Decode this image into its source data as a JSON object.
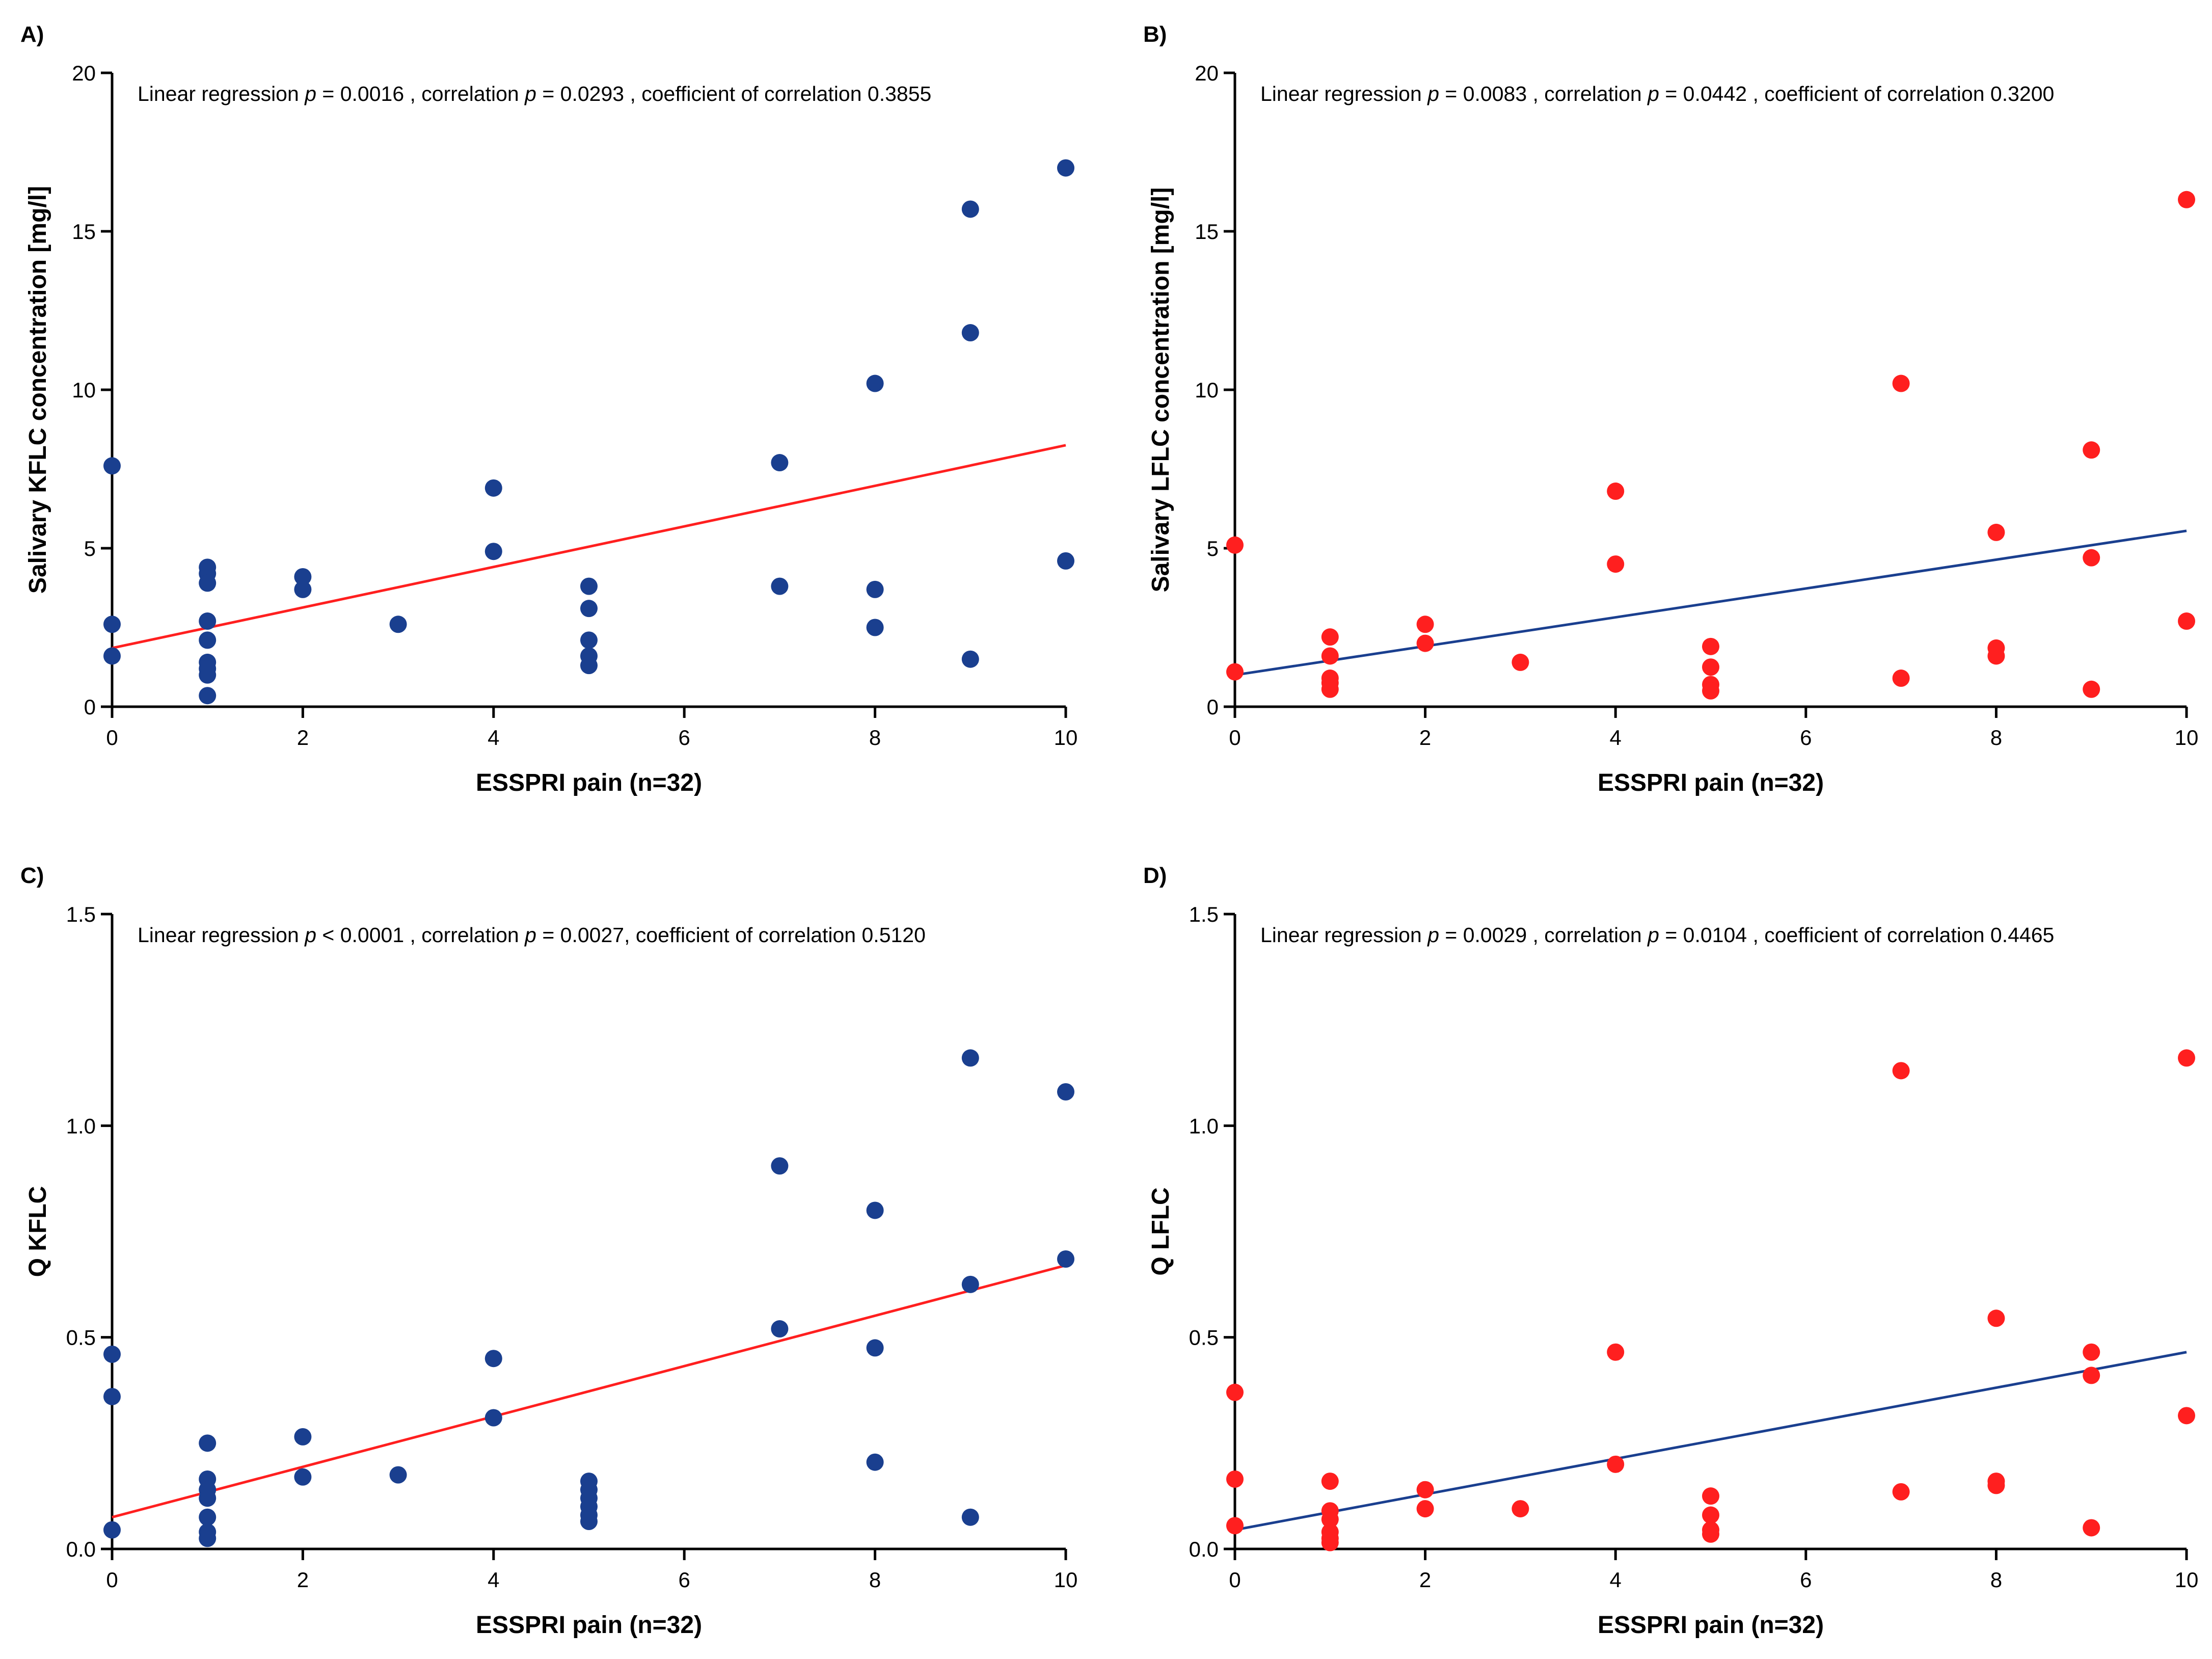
{
  "figure": {
    "colors": {
      "blue": "#1a3f8f",
      "red": "#ff1f1f",
      "axis": "#000000"
    },
    "panels": [
      {
        "label": "A)",
        "ylabel": "Salivary KFLC concentration [mg/l]",
        "xlabel": "ESSPRI pain (n=32)",
        "stats": [
          {
            "t": "Linear regression ",
            "i": false
          },
          {
            "t": "p",
            "i": true
          },
          {
            "t": " = 0.0016 , correlation ",
            "i": false
          },
          {
            "t": "p",
            "i": true
          },
          {
            "t": " = 0.0293 , coefficient of correlation 0.3855",
            "i": false
          }
        ]
      },
      {
        "label": "B)",
        "ylabel": "Salivary LFLC concentration [mg/l]",
        "xlabel": "ESSPRI pain (n=32)",
        "stats": [
          {
            "t": "Linear regression ",
            "i": false
          },
          {
            "t": "p",
            "i": true
          },
          {
            "t": " = 0.0083 , correlation ",
            "i": false
          },
          {
            "t": "p",
            "i": true
          },
          {
            "t": " = 0.0442 , coefficient of correlation 0.3200",
            "i": false
          }
        ]
      },
      {
        "label": "C)",
        "ylabel": "Q KFLC",
        "xlabel": "ESSPRI pain (n=32)",
        "stats": [
          {
            "t": "Linear regression ",
            "i": false
          },
          {
            "t": "p",
            "i": true
          },
          {
            "t": " < 0.0001 , correlation ",
            "i": false
          },
          {
            "t": "p",
            "i": true
          },
          {
            "t": " = 0.0027, coefficient of correlation 0.5120",
            "i": false
          }
        ]
      },
      {
        "label": "D)",
        "ylabel": "Q LFLC",
        "xlabel": "ESSPRI pain (n=32)",
        "stats": [
          {
            "t": "Linear regression ",
            "i": false
          },
          {
            "t": "p",
            "i": true
          },
          {
            "t": " = 0.0029 , correlation ",
            "i": false
          },
          {
            "t": "p",
            "i": true
          },
          {
            "t": " = 0.0104 , coefficient of correlation 0.4465",
            "i": false
          }
        ]
      }
    ]
  },
  "chart_data": [
    {
      "type": "scatter",
      "panel": "A)",
      "xlabel": "ESSPRI pain (n=32)",
      "ylabel": "Salivary KFLC concentration [mg/l]",
      "xlim": [
        0,
        10
      ],
      "ylim": [
        0,
        20
      ],
      "xticks": [
        "0",
        "2",
        "4",
        "6",
        "8",
        "10"
      ],
      "yticks": [
        "0",
        "5",
        "10",
        "15",
        "20"
      ],
      "xtick_values": [
        0,
        2,
        4,
        6,
        8,
        10
      ],
      "ytick_values": [
        0,
        5,
        10,
        15,
        20
      ],
      "point_color": "#1a3f8f",
      "points": [
        [
          0,
          7.6
        ],
        [
          0,
          2.6
        ],
        [
          0,
          1.6
        ],
        [
          1,
          4.4
        ],
        [
          1,
          4.2
        ],
        [
          1,
          3.9
        ],
        [
          1,
          2.7
        ],
        [
          1,
          2.1
        ],
        [
          1,
          1.4
        ],
        [
          1,
          1.2
        ],
        [
          1,
          1.0
        ],
        [
          1,
          0.35
        ],
        [
          2,
          4.1
        ],
        [
          2,
          3.7
        ],
        [
          3,
          2.6
        ],
        [
          4,
          6.9
        ],
        [
          4,
          4.9
        ],
        [
          5,
          3.8
        ],
        [
          5,
          3.1
        ],
        [
          5,
          2.1
        ],
        [
          5,
          1.6
        ],
        [
          5,
          1.3
        ],
        [
          7,
          7.7
        ],
        [
          7,
          3.8
        ],
        [
          8,
          10.2
        ],
        [
          8,
          3.7
        ],
        [
          8,
          2.5
        ],
        [
          9,
          15.7
        ],
        [
          9,
          11.8
        ],
        [
          9,
          1.5
        ],
        [
          10,
          17.0
        ],
        [
          10,
          4.6
        ]
      ],
      "regression": {
        "x": [
          0,
          10
        ],
        "y": [
          1.85,
          8.25
        ],
        "color": "#ff1f1f"
      }
    },
    {
      "type": "scatter",
      "panel": "B)",
      "xlabel": "ESSPRI pain (n=32)",
      "ylabel": "Salivary LFLC concentration [mg/l]",
      "xlim": [
        0,
        10
      ],
      "ylim": [
        0,
        20
      ],
      "xticks": [
        "0",
        "2",
        "4",
        "6",
        "8",
        "10"
      ],
      "yticks": [
        "0",
        "5",
        "10",
        "15",
        "20"
      ],
      "xtick_values": [
        0,
        2,
        4,
        6,
        8,
        10
      ],
      "ytick_values": [
        0,
        5,
        10,
        15,
        20
      ],
      "point_color": "#ff1f1f",
      "points": [
        [
          0,
          5.1
        ],
        [
          0,
          1.1
        ],
        [
          1,
          2.2
        ],
        [
          1,
          1.6
        ],
        [
          1,
          0.9
        ],
        [
          1,
          0.75
        ],
        [
          1,
          0.55
        ],
        [
          2,
          2.6
        ],
        [
          2,
          2.0
        ],
        [
          3,
          1.4
        ],
        [
          4,
          6.8
        ],
        [
          4,
          4.5
        ],
        [
          5,
          1.9
        ],
        [
          5,
          1.25
        ],
        [
          5,
          0.7
        ],
        [
          5,
          0.5
        ],
        [
          7,
          10.2
        ],
        [
          7,
          0.9
        ],
        [
          8,
          5.5
        ],
        [
          8,
          1.85
        ],
        [
          8,
          1.6
        ],
        [
          9,
          8.1
        ],
        [
          9,
          4.7
        ],
        [
          9,
          0.55
        ],
        [
          10,
          16.0
        ],
        [
          10,
          2.7
        ]
      ],
      "regression": {
        "x": [
          0,
          10
        ],
        "y": [
          1.0,
          5.55
        ],
        "color": "#1a3f8f"
      }
    },
    {
      "type": "scatter",
      "panel": "C)",
      "xlabel": "ESSPRI pain (n=32)",
      "ylabel": "Q KFLC",
      "xlim": [
        0,
        10
      ],
      "ylim": [
        0,
        1.5
      ],
      "xticks": [
        "0",
        "2",
        "4",
        "6",
        "8",
        "10"
      ],
      "yticks": [
        "0.0",
        "0.5",
        "1.0",
        "1.5"
      ],
      "xtick_values": [
        0,
        2,
        4,
        6,
        8,
        10
      ],
      "ytick_values": [
        0,
        0.5,
        1.0,
        1.5
      ],
      "point_color": "#1a3f8f",
      "points": [
        [
          0,
          0.46
        ],
        [
          0,
          0.36
        ],
        [
          0,
          0.045
        ],
        [
          1,
          0.25
        ],
        [
          1,
          0.165
        ],
        [
          1,
          0.14
        ],
        [
          1,
          0.12
        ],
        [
          1,
          0.075
        ],
        [
          1,
          0.04
        ],
        [
          1,
          0.025
        ],
        [
          2,
          0.265
        ],
        [
          2,
          0.17
        ],
        [
          3,
          0.175
        ],
        [
          4,
          0.45
        ],
        [
          4,
          0.31
        ],
        [
          5,
          0.16
        ],
        [
          5,
          0.14
        ],
        [
          5,
          0.12
        ],
        [
          5,
          0.1
        ],
        [
          5,
          0.08
        ],
        [
          5,
          0.065
        ],
        [
          7,
          0.905
        ],
        [
          7,
          0.52
        ],
        [
          8,
          0.8
        ],
        [
          8,
          0.475
        ],
        [
          8,
          0.205
        ],
        [
          9,
          1.16
        ],
        [
          9,
          0.625
        ],
        [
          9,
          0.075
        ],
        [
          10,
          1.08
        ],
        [
          10,
          0.685
        ]
      ],
      "regression": {
        "x": [
          0,
          10
        ],
        "y": [
          0.075,
          0.67
        ],
        "color": "#ff1f1f"
      }
    },
    {
      "type": "scatter",
      "panel": "D)",
      "xlabel": "ESSPRI pain (n=32)",
      "ylabel": "Q LFLC",
      "xlim": [
        0,
        10
      ],
      "ylim": [
        0,
        1.5
      ],
      "xticks": [
        "0",
        "2",
        "4",
        "6",
        "8",
        "10"
      ],
      "yticks": [
        "0.0",
        "0.5",
        "1.0",
        "1.5"
      ],
      "xtick_values": [
        0,
        2,
        4,
        6,
        8,
        10
      ],
      "ytick_values": [
        0,
        0.5,
        1.0,
        1.5
      ],
      "point_color": "#ff1f1f",
      "points": [
        [
          0,
          0.37
        ],
        [
          0,
          0.165
        ],
        [
          0,
          0.055
        ],
        [
          1,
          0.16
        ],
        [
          1,
          0.09
        ],
        [
          1,
          0.07
        ],
        [
          1,
          0.04
        ],
        [
          1,
          0.025
        ],
        [
          1,
          0.015
        ],
        [
          2,
          0.14
        ],
        [
          2,
          0.095
        ],
        [
          3,
          0.095
        ],
        [
          4,
          0.465
        ],
        [
          4,
          0.2
        ],
        [
          5,
          0.125
        ],
        [
          5,
          0.08
        ],
        [
          5,
          0.045
        ],
        [
          5,
          0.035
        ],
        [
          7,
          1.13
        ],
        [
          7,
          0.135
        ],
        [
          8,
          0.545
        ],
        [
          8,
          0.16
        ],
        [
          8,
          0.15
        ],
        [
          9,
          0.465
        ],
        [
          9,
          0.41
        ],
        [
          9,
          0.05
        ],
        [
          10,
          1.16
        ],
        [
          10,
          0.315
        ]
      ],
      "regression": {
        "x": [
          0,
          10
        ],
        "y": [
          0.045,
          0.465
        ],
        "color": "#1a3f8f"
      }
    }
  ]
}
